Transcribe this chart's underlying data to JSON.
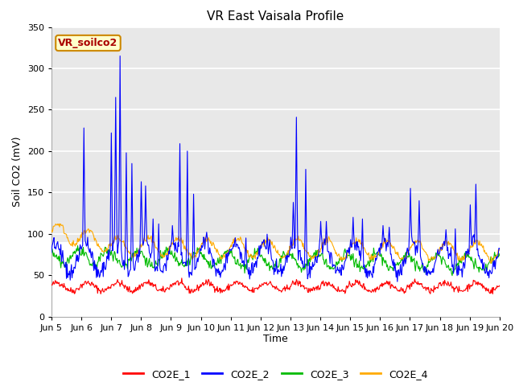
{
  "title": "VR East Vaisala Profile",
  "ylabel": "Soil CO2 (mV)",
  "xlabel": "Time",
  "annotation_label": "VR_soilco2",
  "ylim": [
    0,
    350
  ],
  "yticks": [
    0,
    50,
    100,
    150,
    200,
    250,
    300,
    350
  ],
  "xticklabels": [
    "Jun 5",
    "Jun 6",
    "Jun 7",
    "Jun 8",
    "Jun 9",
    "Jun 10",
    "Jun 11",
    "Jun 12",
    "Jun 13",
    "Jun 14",
    "Jun 15",
    "Jun 16",
    "Jun 17",
    "Jun 18",
    "Jun 19",
    "Jun 20"
  ],
  "line_colors": [
    "#ff0000",
    "#0000ff",
    "#00bb00",
    "#ffaa00"
  ],
  "line_labels": [
    "CO2E_1",
    "CO2E_2",
    "CO2E_3",
    "CO2E_4"
  ],
  "background_color": "#ffffff",
  "plot_bg_color": "#e8e8e8",
  "shaded_region_light": [
    90,
    350
  ],
  "shaded_color_light": "#e8e8e8",
  "shaded_region_white": [
    0,
    90
  ],
  "title_fontsize": 11,
  "axis_fontsize": 9,
  "tick_fontsize": 8,
  "legend_fontsize": 9
}
